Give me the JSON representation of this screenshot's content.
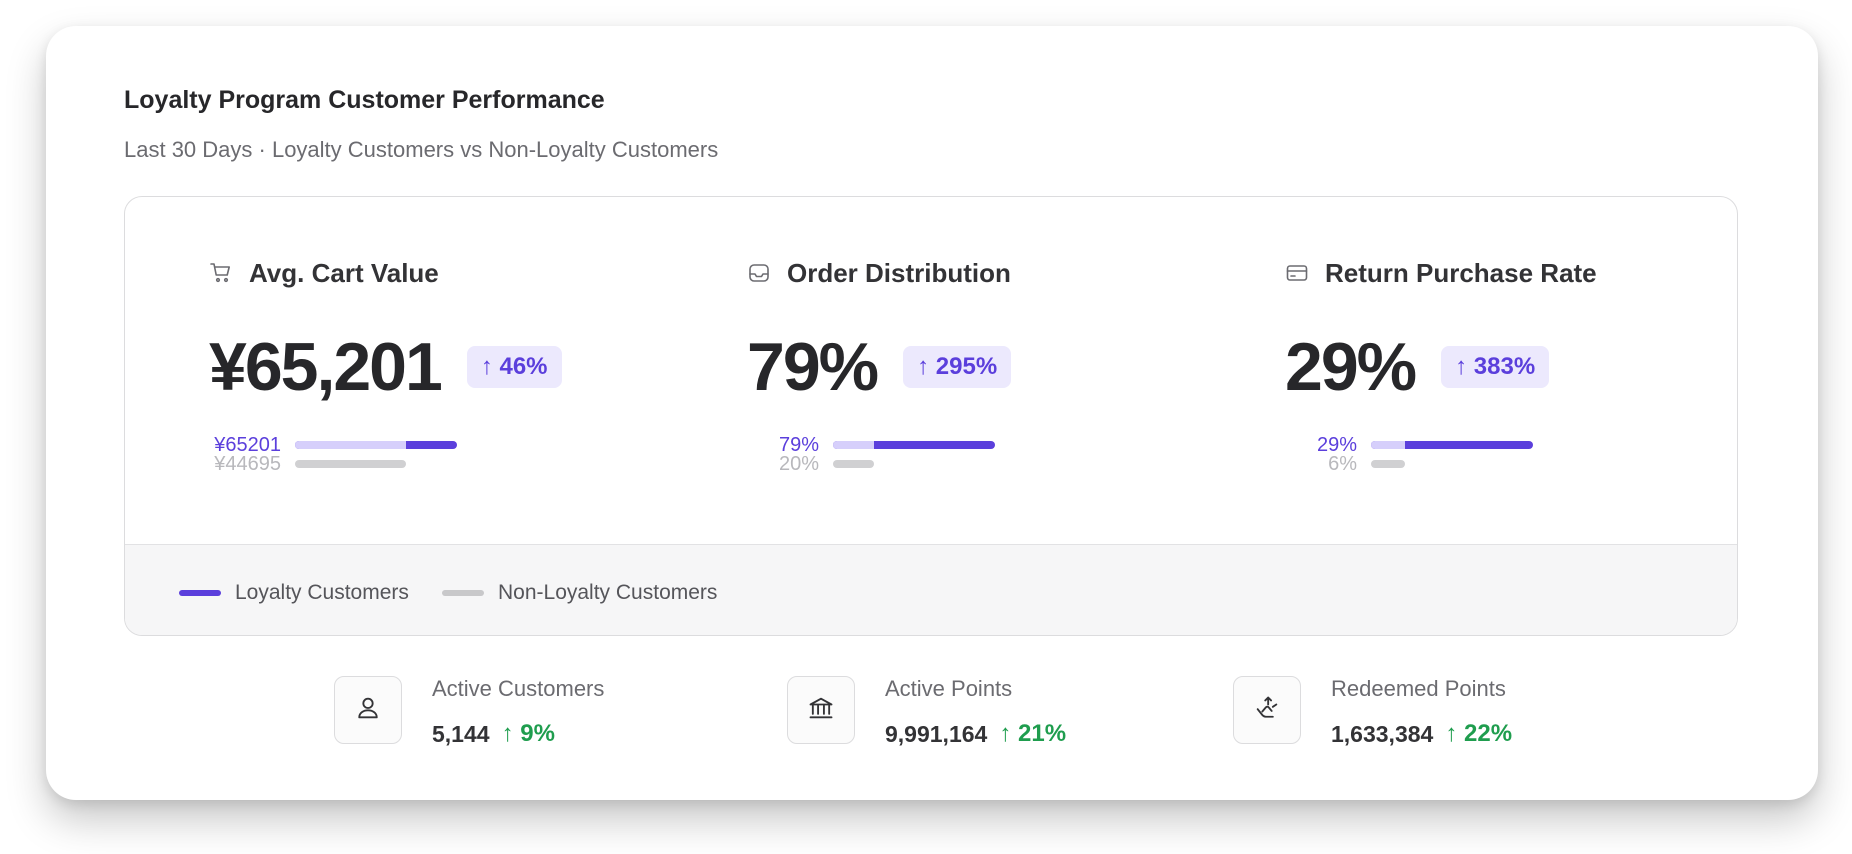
{
  "header": {
    "title": "Loyalty Program Customer Performance",
    "subtitle": "Last 30 Days · Loyalty Customers vs Non-Loyalty Customers"
  },
  "colors": {
    "loyalty": "#5b3fdc",
    "loyalty_light": "#d6cffb",
    "non_loyalty": "#d0d0d2",
    "non_loyalty_text": "#b8b8bc",
    "positive": "#1f9d4e"
  },
  "metrics": [
    {
      "icon": "shopping-cart-icon",
      "label": "Avg. Cart Value",
      "value": "¥65,201",
      "delta": "↑ 46%",
      "loyalty_label": "¥65201",
      "non_loyalty_label": "¥44695",
      "loyalty_value": 65201,
      "non_loyalty_value": 44695
    },
    {
      "icon": "inbox-icon",
      "label": "Order Distribution",
      "value": "79%",
      "delta": "↑ 295%",
      "loyalty_label": "79%",
      "non_loyalty_label": "20%",
      "loyalty_value": 79,
      "non_loyalty_value": 20
    },
    {
      "icon": "credit-card-icon",
      "label": "Return Purchase Rate",
      "value": "29%",
      "delta": "↑ 383%",
      "loyalty_label": "29%",
      "non_loyalty_label": "6%",
      "loyalty_value": 29,
      "non_loyalty_value": 6
    }
  ],
  "legend": {
    "loyalty": "Loyalty Customers",
    "non_loyalty": "Non-Loyalty Customers"
  },
  "stats": [
    {
      "icon": "user-icon",
      "label": "Active Customers",
      "value": "5,144",
      "delta": "↑ 9%"
    },
    {
      "icon": "bank-icon",
      "label": "Active Points",
      "value": "9,991,164",
      "delta": "↑ 21%"
    },
    {
      "icon": "hand-coins-icon",
      "label": "Redeemed Points",
      "value": "1,633,384",
      "delta": "↑ 22%"
    }
  ]
}
